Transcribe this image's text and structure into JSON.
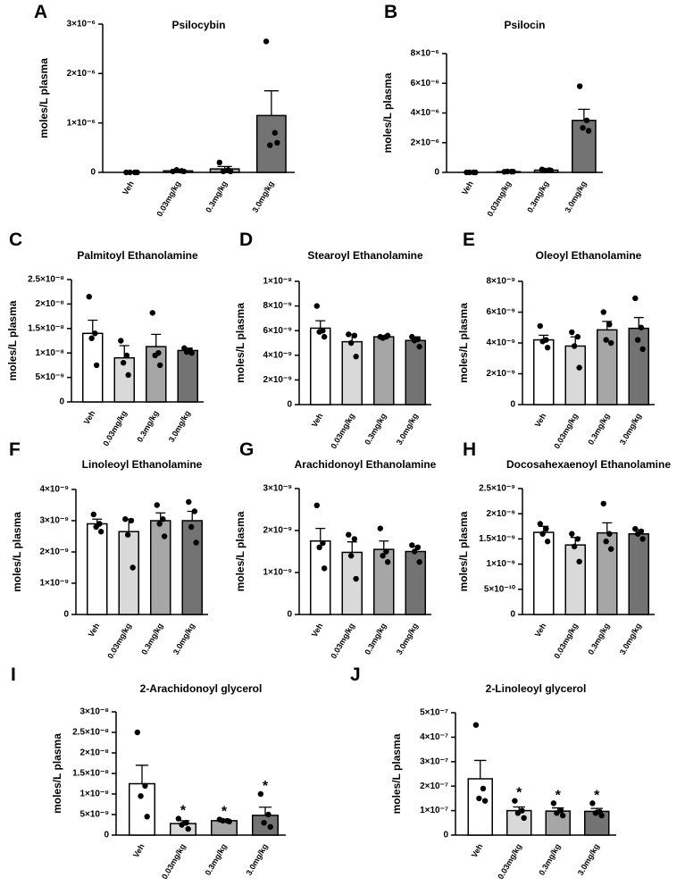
{
  "chart_data": [
    {
      "type": "bar",
      "panel": "A",
      "title": "Psilocybin",
      "ylabel": "moles/L plasma",
      "categories": [
        "Veh",
        "0.03mg/kg",
        "0.3mg/kg",
        "3.0mg/kg"
      ],
      "colors": [
        "#ffffff",
        "#d9d9d9",
        "#a6a6a6",
        "#737373"
      ],
      "values": [
        0,
        3e-08,
        7e-08,
        1.15e-06
      ],
      "errors": [
        0,
        2e-08,
        5e-08,
        5e-07
      ],
      "points": [
        [
          0,
          0,
          0,
          0
        ],
        [
          2e-08,
          3e-08,
          5e-08,
          2e-08
        ],
        [
          2e-07,
          5e-08,
          2e-08,
          2e-08
        ],
        [
          2.65e-06,
          8e-07,
          5.5e-07,
          6e-07
        ]
      ],
      "ylim": [
        0,
        3e-06
      ],
      "yticks": [
        0,
        {
          "value": 1e-06,
          "label": "1×10⁻⁶"
        },
        {
          "value": 2e-06,
          "label": "2×10⁻⁶"
        },
        {
          "value": 3e-06,
          "label": "3×10⁻⁶"
        }
      ]
    },
    {
      "type": "bar",
      "panel": "B",
      "title": "Psilocin",
      "ylabel": "moles/L plasma",
      "categories": [
        "Veh",
        "0.03mg/kg",
        "0.3mg/kg",
        "3.0mg/kg"
      ],
      "colors": [
        "#ffffff",
        "#d9d9d9",
        "#a6a6a6",
        "#737373"
      ],
      "values": [
        0,
        5e-08,
        1.5e-07,
        3.5e-06
      ],
      "errors": [
        0,
        3e-08,
        6e-08,
        7.5e-07
      ],
      "points": [
        [
          0,
          0,
          0,
          0
        ],
        [
          4e-08,
          5e-08,
          6e-08,
          5e-08
        ],
        [
          2e-07,
          1.5e-07,
          1.2e-07,
          1.3e-07
        ],
        [
          5.8e-06,
          3.5e-06,
          3e-06,
          2.8e-06
        ]
      ],
      "ylim": [
        0,
        8e-06
      ],
      "yticks": [
        0,
        {
          "value": 2e-06,
          "label": "2×10⁻⁶"
        },
        {
          "value": 4e-06,
          "label": "4×10⁻⁶"
        },
        {
          "value": 6e-06,
          "label": "6×10⁻⁶"
        },
        {
          "value": 8e-06,
          "label": "8×10⁻⁶"
        }
      ]
    },
    {
      "type": "bar",
      "panel": "C",
      "title": "Palmitoyl Ethanolamine",
      "ylabel": "moles/L plasma",
      "categories": [
        "Veh",
        "0.03mg/kg",
        "0.3mg/kg",
        "3.0mg/kg"
      ],
      "colors": [
        "#ffffff",
        "#d9d9d9",
        "#a6a6a6",
        "#737373"
      ],
      "values": [
        1.4e-08,
        9e-09,
        1.13e-08,
        1.05e-08
      ],
      "errors": [
        2.7e-09,
        2.5e-09,
        2.5e-09,
        5e-10
      ],
      "points": [
        [
          2.15e-08,
          1.4e-08,
          1.3e-08,
          7.5e-09
        ],
        [
          1.25e-08,
          9.5e-09,
          8e-09,
          5.5e-09
        ],
        [
          1.82e-08,
          1e-08,
          9.5e-09,
          7.5e-09
        ],
        [
          1.1e-08,
          1.05e-08,
          1.02e-08,
          1e-08
        ]
      ],
      "ylim": [
        0,
        2.5e-08
      ],
      "yticks": [
        0,
        {
          "value": 5e-09,
          "label": "5×10⁻⁹"
        },
        {
          "value": 1e-08,
          "label": "1×10⁻⁸"
        },
        {
          "value": 1.5e-08,
          "label": "1.5×10⁻⁸"
        },
        {
          "value": 2e-08,
          "label": "2×10⁻⁸"
        },
        {
          "value": 2.5e-08,
          "label": "2.5×10⁻⁸"
        }
      ]
    },
    {
      "type": "bar",
      "panel": "D",
      "title": "Stearoyl Ethanolamine",
      "ylabel": "moles/L plasma",
      "categories": [
        "Veh",
        "0.03mg/kg",
        "0.3mg/kg",
        "3.0mg/kg"
      ],
      "colors": [
        "#ffffff",
        "#d9d9d9",
        "#a6a6a6",
        "#737373"
      ],
      "values": [
        6.2e-09,
        5.1e-09,
        5.5e-09,
        5.2e-09
      ],
      "errors": [
        6e-10,
        6e-10,
        1e-10,
        3e-10
      ],
      "points": [
        [
          8e-09,
          6e-09,
          5.9e-09,
          5.5e-09
        ],
        [
          5.7e-09,
          5.6e-09,
          5e-09,
          3.9e-09
        ],
        [
          5.5e-09,
          5.5e-09,
          5.4e-09,
          5.6e-09
        ],
        [
          5.5e-09,
          5.3e-09,
          5.2e-09,
          4.7e-09
        ]
      ],
      "ylim": [
        0,
        1e-08
      ],
      "yticks": [
        0,
        {
          "value": 2e-09,
          "label": "2×10⁻⁹"
        },
        {
          "value": 4e-09,
          "label": "4×10⁻⁹"
        },
        {
          "value": 6e-09,
          "label": "6×10⁻⁹"
        },
        {
          "value": 8e-09,
          "label": "8×10⁻⁹"
        },
        {
          "value": 1e-08,
          "label": "1×10⁻⁸"
        }
      ]
    },
    {
      "type": "bar",
      "panel": "E",
      "title": "Oleoyl Ethanolamine",
      "ylabel": "moles/L plasma",
      "categories": [
        "Veh",
        "0.03mg/kg",
        "0.3mg/kg",
        "3.0mg/kg"
      ],
      "colors": [
        "#ffffff",
        "#d9d9d9",
        "#a6a6a6",
        "#737373"
      ],
      "values": [
        4.2e-09,
        3.8e-09,
        4.85e-09,
        4.95e-09
      ],
      "errors": [
        3e-10,
        6e-10,
        5.5e-10,
        7e-10
      ],
      "points": [
        [
          5.1e-09,
          4.2e-09,
          4.1e-09,
          3.7e-09
        ],
        [
          4.7e-09,
          4.4e-09,
          3.8e-09,
          2.4e-09
        ],
        [
          6e-09,
          5.2e-09,
          4.2e-09,
          4e-09
        ],
        [
          6.9e-09,
          5e-09,
          4.2e-09,
          3.6e-09
        ]
      ],
      "ylim": [
        0,
        8e-09
      ],
      "yticks": [
        0,
        {
          "value": 2e-09,
          "label": "2×10⁻⁹"
        },
        {
          "value": 4e-09,
          "label": "4×10⁻⁹"
        },
        {
          "value": 6e-09,
          "label": "6×10⁻⁹"
        },
        {
          "value": 8e-09,
          "label": "8×10⁻⁹"
        }
      ]
    },
    {
      "type": "bar",
      "panel": "F",
      "title": "Linoleoyl Ethanolamine",
      "ylabel": "moles/L plasma",
      "categories": [
        "Veh",
        "0.03mg/kg",
        "0.3mg/kg",
        "3.0mg/kg"
      ],
      "colors": [
        "#ffffff",
        "#d9d9d9",
        "#a6a6a6",
        "#737373"
      ],
      "values": [
        2.9e-09,
        2.65e-09,
        3e-09,
        3e-09
      ],
      "errors": [
        1.5e-10,
        4e-10,
        2.5e-10,
        3e-10
      ],
      "points": [
        [
          3.2e-09,
          2.9e-09,
          2.8e-09,
          2.65e-09
        ],
        [
          3.05e-09,
          3e-09,
          2.55e-09,
          1.5e-09
        ],
        [
          3.5e-09,
          3.05e-09,
          2.9e-09,
          2.5e-09
        ],
        [
          3.6e-09,
          3.3e-09,
          2.8e-09,
          2.3e-09
        ]
      ],
      "ylim": [
        0,
        4e-09
      ],
      "yticks": [
        0,
        {
          "value": 1e-09,
          "label": "1×10⁻⁹"
        },
        {
          "value": 2e-09,
          "label": "2×10⁻⁹"
        },
        {
          "value": 3e-09,
          "label": "3×10⁻⁹"
        },
        {
          "value": 4e-09,
          "label": "4×10⁻⁹"
        }
      ]
    },
    {
      "type": "bar",
      "panel": "G",
      "title": "Arachidonoyl Ethanolamine",
      "ylabel": "moles/L plasma",
      "categories": [
        "Veh",
        "0.03mg/kg",
        "0.3mg/kg",
        "3.0mg/kg"
      ],
      "colors": [
        "#ffffff",
        "#d9d9d9",
        "#a6a6a6",
        "#737373"
      ],
      "values": [
        1.75e-09,
        1.48e-09,
        1.55e-09,
        1.5e-09
      ],
      "errors": [
        3e-10,
        2.5e-10,
        2e-10,
        1.2e-10
      ],
      "points": [
        [
          2.6e-09,
          1.7e-09,
          1.6e-09,
          1.1e-09
        ],
        [
          1.9e-09,
          1.8e-09,
          1.4e-09,
          8.5e-10
        ],
        [
          2.05e-09,
          1.5e-09,
          1.4e-09,
          1.25e-09
        ],
        [
          1.65e-09,
          1.6e-09,
          1.5e-09,
          1.25e-09
        ]
      ],
      "ylim": [
        0,
        3e-09
      ],
      "yticks": [
        0,
        {
          "value": 1e-09,
          "label": "1×10⁻⁹"
        },
        {
          "value": 2e-09,
          "label": "2×10⁻⁹"
        },
        {
          "value": 3e-09,
          "label": "3×10⁻⁹"
        }
      ]
    },
    {
      "type": "bar",
      "panel": "H",
      "title": "Docosahexaenoyl Ethanolamine",
      "ylabel": "moles/L plasma",
      "categories": [
        "Veh",
        "0.03mg/kg",
        "0.3mg/kg",
        "3.0mg/kg"
      ],
      "colors": [
        "#ffffff",
        "#d9d9d9",
        "#a6a6a6",
        "#737373"
      ],
      "values": [
        1.63e-09,
        1.38e-09,
        1.62e-09,
        1.6e-09
      ],
      "errors": [
        1.2e-10,
        1.5e-10,
        2e-10,
        8e-11
      ],
      "points": [
        [
          1.8e-09,
          1.7e-09,
          1.6e-09,
          1.45e-09
        ],
        [
          1.6e-09,
          1.5e-09,
          1.35e-09,
          1.05e-09
        ],
        [
          2.2e-09,
          1.6e-09,
          1.45e-09,
          1.3e-09
        ],
        [
          1.7e-09,
          1.65e-09,
          1.6e-09,
          1.5e-09
        ]
      ],
      "ylim": [
        0,
        2.5e-09
      ],
      "yticks": [
        0,
        {
          "value": 5e-10,
          "label": "5×10⁻¹⁰"
        },
        {
          "value": 1e-09,
          "label": "1×10⁻⁹"
        },
        {
          "value": 1.5e-09,
          "label": "1.5×10⁻⁹"
        },
        {
          "value": 2e-09,
          "label": "2×10⁻⁹"
        },
        {
          "value": 2.5e-09,
          "label": "2.5×10⁻⁹"
        }
      ]
    },
    {
      "type": "bar",
      "panel": "I",
      "title": "2-Arachidonoyl glycerol",
      "ylabel": "moles/L plasma",
      "categories": [
        "Veh",
        "0.03mg/kg",
        "0.3mg/kg",
        "3.0mg/kg"
      ],
      "colors": [
        "#ffffff",
        "#d9d9d9",
        "#a6a6a6",
        "#737373"
      ],
      "values": [
        1.25e-08,
        2.8e-09,
        3.5e-09,
        4.8e-09
      ],
      "errors": [
        4.5e-09,
        7e-10,
        2e-10,
        2e-09
      ],
      "points": [
        [
          2.5e-08,
          1.2e-08,
          9.5e-09,
          4.5e-09
        ],
        [
          4e-09,
          3e-09,
          2.5e-09,
          1.5e-09
        ],
        [
          3.8e-09,
          3.5e-09,
          3.5e-09,
          3.3e-09
        ],
        [
          1e-08,
          5e-09,
          3e-09,
          2e-09
        ]
      ],
      "significance": [
        null,
        "*",
        "*",
        "*"
      ],
      "ylim": [
        0,
        3e-08
      ],
      "yticks": [
        0,
        {
          "value": 5e-09,
          "label": "5×10⁻⁹"
        },
        {
          "value": 1e-08,
          "label": "1×10⁻⁸"
        },
        {
          "value": 1.5e-08,
          "label": "1.5×10⁻⁸"
        },
        {
          "value": 2e-08,
          "label": "2×10⁻⁸"
        },
        {
          "value": 2.5e-08,
          "label": "2.5×10⁻⁸"
        },
        {
          "value": 3e-08,
          "label": "3×10⁻⁸"
        }
      ]
    },
    {
      "type": "bar",
      "panel": "J",
      "title": "2-Linoleoyl glycerol",
      "ylabel": "moles/L plasma",
      "categories": [
        "Veh",
        "0.03mg/kg",
        "0.3mg/kg",
        "3.0mg/kg"
      ],
      "colors": [
        "#ffffff",
        "#d9d9d9",
        "#a6a6a6",
        "#737373"
      ],
      "values": [
        2.3e-07,
        1e-07,
        9.8e-08,
        9.7e-08
      ],
      "errors": [
        7.5e-08,
        1.5e-08,
        1.3e-08,
        1.2e-08
      ],
      "points": [
        [
          4.5e-07,
          1.9e-07,
          1.5e-07,
          1.4e-07
        ],
        [
          1.4e-07,
          1e-07,
          9e-08,
          7e-08
        ],
        [
          1.3e-07,
          1e-07,
          9e-08,
          8e-08
        ],
        [
          1.3e-07,
          9.5e-08,
          9e-08,
          8e-08
        ]
      ],
      "significance": [
        null,
        "*",
        "*",
        "*"
      ],
      "ylim": [
        0,
        5e-07
      ],
      "yticks": [
        0,
        {
          "value": 1e-07,
          "label": "1×10⁻⁷"
        },
        {
          "value": 2e-07,
          "label": "2×10⁻⁷"
        },
        {
          "value": 3e-07,
          "label": "3×10⁻⁷"
        },
        {
          "value": 4e-07,
          "label": "4×10⁻⁷"
        },
        {
          "value": 5e-07,
          "label": "5×10⁻⁷"
        }
      ]
    }
  ]
}
